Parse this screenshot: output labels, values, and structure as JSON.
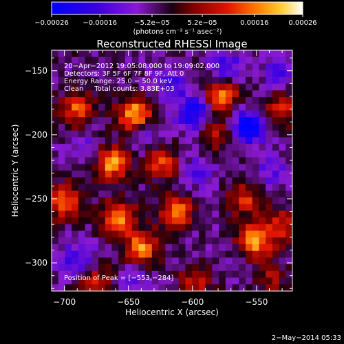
{
  "chart_data": {
    "type": "heatmap",
    "title": "Reconstructed RHESSI Image",
    "xlabel": "Heliocentric X (arcsec)",
    "ylabel": "Heliocentric Y (arcsec)",
    "xlim": [
      -710,
      -522
    ],
    "ylim": [
      -322,
      -134
    ],
    "x_ticks": [
      -700,
      -650,
      -600,
      -550
    ],
    "x_tick_labels": [
      "−700",
      "−650",
      "−600",
      "−550"
    ],
    "y_ticks": [
      -300,
      -250,
      -200,
      -150
    ],
    "y_tick_labels": [
      "−300",
      "−250",
      "−200",
      "−150"
    ],
    "colorbar": {
      "ticks": [
        -0.00026,
        -0.00016,
        -5.2e-05,
        5.2e-05,
        0.00016,
        0.00026
      ],
      "tick_labels": [
        "−0.00026",
        "−0.00016",
        "−5.2e−05",
        "5.2e−05",
        "0.00016",
        "0.00026"
      ],
      "unit_label": "(photons cm⁻² s⁻¹ asec⁻²)",
      "range": [
        -0.00026,
        0.00026
      ]
    },
    "annotations": {
      "line1": "20−Apr−2012 19:05:08.000 to 19:09:02.000",
      "line2": "Detectors: 3F 5F 6F 7F 8F 9F, Att 0",
      "line3": "Energy Range: 25.0 − 50.0 keV",
      "line4": "Clean     Total counts: 3.83E+03",
      "peak": "Position of Peak = [−553,−284]"
    },
    "peak_position": [
      -553,
      -284
    ],
    "grid": false,
    "grid_size": 36,
    "blue_blobs": [
      {
        "x": -598,
        "y": -183,
        "v": -0.00022
      },
      {
        "x": -556,
        "y": -194,
        "v": -0.00024
      },
      {
        "x": -616,
        "y": -162,
        "v": -0.00012
      },
      {
        "x": -574,
        "y": -148,
        "v": -0.00014
      },
      {
        "x": -532,
        "y": -152,
        "v": -0.00012
      },
      {
        "x": -638,
        "y": -200,
        "v": -0.00011
      },
      {
        "x": -690,
        "y": -298,
        "v": -0.00015
      },
      {
        "x": -596,
        "y": -228,
        "v": -0.0001
      },
      {
        "x": -538,
        "y": -228,
        "v": -0.0001
      },
      {
        "x": -684,
        "y": -210,
        "v": -9e-05
      },
      {
        "x": -610,
        "y": -268,
        "v": -8e-05
      },
      {
        "x": -560,
        "y": -292,
        "v": -8e-05
      },
      {
        "x": -645,
        "y": -310,
        "v": -8e-05
      }
    ],
    "hot_blobs": [
      {
        "x": -645,
        "y": -185,
        "v": 0.00026
      },
      {
        "x": -612,
        "y": -262,
        "v": 0.00025
      },
      {
        "x": -658,
        "y": -265,
        "v": 0.00024
      },
      {
        "x": -663,
        "y": -222,
        "v": 0.00023
      },
      {
        "x": -553,
        "y": -284,
        "v": 0.00026
      },
      {
        "x": -700,
        "y": -252,
        "v": 0.00021
      },
      {
        "x": -578,
        "y": -170,
        "v": 0.00022
      },
      {
        "x": -640,
        "y": -289,
        "v": 0.00022
      },
      {
        "x": -690,
        "y": -180,
        "v": 0.00018
      },
      {
        "x": -560,
        "y": -250,
        "v": 0.00016
      },
      {
        "x": -624,
        "y": -222,
        "v": 0.00016
      },
      {
        "x": -530,
        "y": -180,
        "v": 0.00015
      },
      {
        "x": -532,
        "y": -272,
        "v": 0.00015
      },
      {
        "x": -676,
        "y": -315,
        "v": 0.00014
      },
      {
        "x": -598,
        "y": -316,
        "v": 0.00013
      },
      {
        "x": -583,
        "y": -200,
        "v": 0.00012
      },
      {
        "x": -540,
        "y": -312,
        "v": 0.0001
      }
    ],
    "baseline": -5e-05
  },
  "timestamp": "2−May−2014 05:33"
}
